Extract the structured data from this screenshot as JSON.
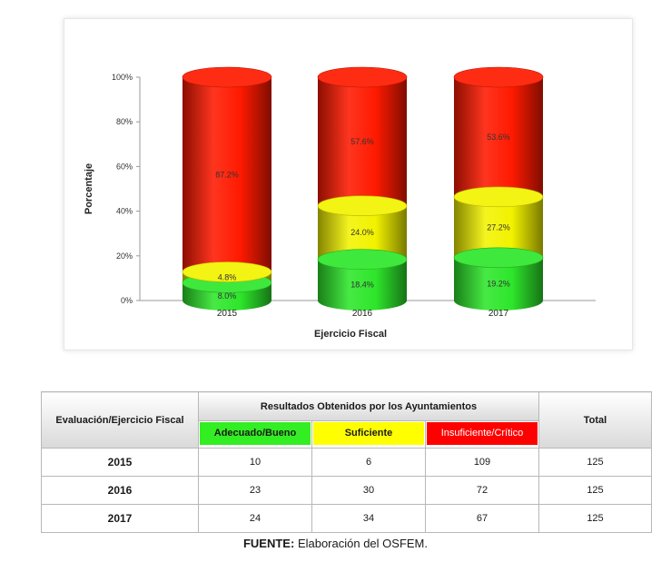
{
  "colors": {
    "green": "#2ee62b",
    "yellow": "#f2f200",
    "red": "#ff1a00",
    "green_cell": "#33ee22",
    "yellow_cell": "#ffff00",
    "red_cell": "#ff0000"
  },
  "chart_data": {
    "type": "bar",
    "stacked": true,
    "style": "3d-cylinder",
    "categories": [
      "2015",
      "2016",
      "2017"
    ],
    "xlabel": "Ejercicio Fiscal",
    "ylabel": "Porcentaje",
    "ylim": [
      0,
      100
    ],
    "yticks": [
      "0%",
      "20%",
      "40%",
      "60%",
      "80%",
      "100%"
    ],
    "series": [
      {
        "color": "#2ee62b",
        "values": [
          8.0,
          18.4,
          19.2
        ],
        "labels": [
          "8.0%",
          "18.4%",
          "19.2%"
        ]
      },
      {
        "color": "#f2f200",
        "values": [
          4.8,
          24.0,
          27.2
        ],
        "labels": [
          "4.8%",
          "24.0%",
          "27.2%"
        ]
      },
      {
        "color": "#ff1a00",
        "values": [
          87.2,
          57.6,
          53.6
        ],
        "labels": [
          "87.2%",
          "57.6%",
          "53.6%"
        ]
      }
    ]
  },
  "table": {
    "corner_header": "Evaluación/Ejercicio Fiscal",
    "group_header": "Resultados Obtenidos por los Ayuntamientos",
    "total_header": "Total",
    "categories": [
      "Adecuado/Bueno",
      "Suficiente",
      "Insuficiente/Crítico"
    ],
    "rows": [
      {
        "year": "2015",
        "values": [
          "10",
          "6",
          "109"
        ],
        "total": "125"
      },
      {
        "year": "2016",
        "values": [
          "23",
          "30",
          "72"
        ],
        "total": "125"
      },
      {
        "year": "2017",
        "values": [
          "24",
          "34",
          "67"
        ],
        "total": "125"
      }
    ]
  },
  "source": {
    "label": "FUENTE:",
    "text": "Elaboración del OSFEM."
  }
}
